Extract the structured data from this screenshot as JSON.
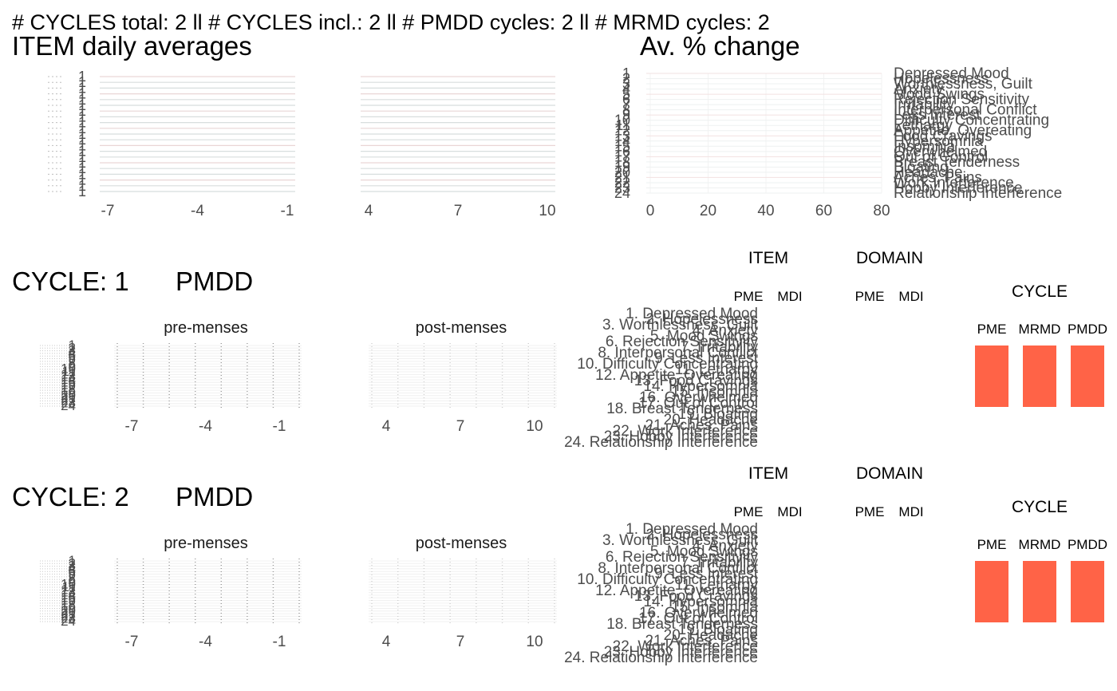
{
  "header": {
    "summary": "# CYCLES total: 2   ll   # CYCLES incl.: 2   ll   # PMDD cycles: 2   ll   # MRMD cycles: 2"
  },
  "panels": {
    "item_title": "ITEM daily averages",
    "change_title": "Av. % change",
    "cycle_tag": "PMDD",
    "cycle_prefix": "CYCLE: ",
    "pre_label": "pre-menses",
    "post_label": "post-menses",
    "item_header": "ITEM",
    "domain_header": "DOMAIN",
    "cycle_header": "CYCLE",
    "item_cols": [
      "PME",
      "MDI"
    ],
    "domain_cols": [
      "PME",
      "MDI"
    ],
    "cycle_cols": [
      "PME",
      "MRMD",
      "PMDD"
    ]
  },
  "colors": {
    "bar": "#ff6347",
    "grid": "#ebebeb",
    "text_dark": "#000000",
    "text_mid": "#4d4d4d"
  },
  "chart_data": [
    {
      "type": "line",
      "title": "ITEM daily averages",
      "panel": "pre-menses",
      "x_ticks": [
        -7,
        -4,
        -1
      ],
      "xlim": [
        -7,
        -1
      ],
      "y_tick_labels": [
        "1",
        "1",
        "1",
        "1",
        "1",
        "1",
        "1",
        "1",
        "1",
        "1",
        "1",
        "1",
        "1",
        "1",
        "1",
        "1",
        "1",
        "1",
        "1",
        "1",
        "1"
      ]
    },
    {
      "type": "line",
      "title": "ITEM daily averages",
      "panel": "post-menses",
      "x_ticks": [
        4,
        7,
        10
      ],
      "xlim": [
        4,
        10
      ]
    },
    {
      "type": "bar",
      "title": "Av. % change",
      "orientation": "horizontal",
      "x_ticks": [
        0,
        20,
        40,
        60,
        80
      ],
      "xlim": [
        0,
        80
      ],
      "y_tick_labels": [
        "1",
        "2",
        "3",
        "4",
        "5",
        "6",
        "7",
        "8",
        "9",
        "10",
        "11",
        "12",
        "13",
        "14",
        "15",
        "16",
        "17",
        "18",
        "19",
        "20",
        "21",
        "22",
        "23",
        "24"
      ],
      "categories": [
        "Depressed Mood",
        "Hopelessness",
        "Worthlessness, Guilt",
        "Anxiety",
        "Mood Swings",
        "Rejection Sensitivity",
        "Irritability",
        "Interpersonal Conflict",
        "Less Interest",
        "Difficulty Concentrating",
        "Lethargy",
        "Appetite, Overeating",
        "Food Cravings",
        "Hypersomnia",
        "Insomnia",
        "Overwhelmed",
        "Out of Control",
        "Breast Tenderness",
        "Bloating",
        "Headache",
        "Aches, Pains",
        "Work Interference",
        "Hobby Interference",
        "Relationship Interference"
      ]
    },
    {
      "type": "heatmap",
      "title": "CYCLE: 1",
      "tag": "PMDD",
      "panels": [
        "pre-menses",
        "post-menses"
      ],
      "pre_x_ticks": [
        -7,
        -4,
        -1
      ],
      "post_x_ticks": [
        4,
        7,
        10
      ],
      "y_tick_labels": [
        "1",
        "2",
        "3",
        "4",
        "5",
        "6",
        "7",
        "8",
        "9",
        "10",
        "11",
        "12",
        "13",
        "14",
        "15",
        "16",
        "17",
        "18",
        "19",
        "20",
        "21",
        "22",
        "23",
        "24"
      ],
      "item_labels": [
        "1. Depressed Mood",
        "2. Hopelessness",
        "3. Worthlessness, Guilt",
        "4. Anxiety",
        "5. Mood Swings",
        "6. Rejection Sensitivity",
        "7. Irritability",
        "8. Interpersonal Conflict",
        "9. Less Interest",
        "10. Difficulty Concentrating",
        "11. Lethargy",
        "12. Appetite, Overeating",
        "13. Food Cravings",
        "14. Hypersomnia",
        "15. Insomnia",
        "16. Overwhelmed",
        "17. Out of Control",
        "18. Breast Tenderness",
        "19. Bloating",
        "20. Headache",
        "21. Aches, Pains",
        "22. Work Interference",
        "23. Hobby Interference",
        "24. Relationship Interference"
      ],
      "cycle_flags": {
        "categories": [
          "PME",
          "MRMD",
          "PMDD"
        ],
        "values": [
          1,
          1,
          1
        ]
      }
    },
    {
      "type": "heatmap",
      "title": "CYCLE: 2",
      "tag": "PMDD",
      "panels": [
        "pre-menses",
        "post-menses"
      ],
      "pre_x_ticks": [
        -7,
        -4,
        -1
      ],
      "post_x_ticks": [
        4,
        7,
        10
      ],
      "y_tick_labels": [
        "1",
        "2",
        "3",
        "4",
        "5",
        "6",
        "7",
        "8",
        "9",
        "10",
        "11",
        "12",
        "13",
        "14",
        "15",
        "16",
        "17",
        "18",
        "19",
        "20",
        "21",
        "22",
        "23",
        "24"
      ],
      "item_labels": [
        "1. Depressed Mood",
        "2. Hopelessness",
        "3. Worthlessness, Guilt",
        "4. Anxiety",
        "5. Mood Swings",
        "6. Rejection Sensitivity",
        "7. Irritability",
        "8. Interpersonal Conflict",
        "9. Less Interest",
        "10. Difficulty Concentrating",
        "11. Lethargy",
        "12. Appetite, Overeating",
        "13. Food Cravings",
        "14. Hypersomnia",
        "15. Insomnia",
        "16. Overwhelmed",
        "17. Out of Control",
        "18. Breast Tenderness",
        "19. Bloating",
        "20. Headache",
        "21. Aches, Pains",
        "22. Work Interference",
        "23. Hobby Interference",
        "24. Relationship Interference"
      ],
      "cycle_flags": {
        "categories": [
          "PME",
          "MRMD",
          "PMDD"
        ],
        "values": [
          1,
          1,
          1
        ]
      }
    }
  ]
}
